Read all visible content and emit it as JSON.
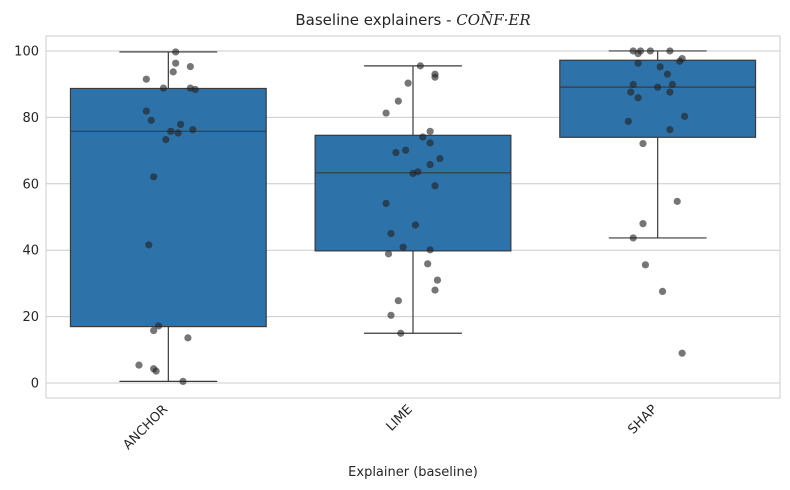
{
  "chart_data": {
    "type": "boxplot",
    "title_plain": "Baseline explainers - ",
    "title_math": "CON̄F·ER",
    "xlabel": "Explainer (baseline)",
    "ylabel": "",
    "ylim": [
      -4.5,
      104.5
    ],
    "yticks": [
      0,
      20,
      40,
      60,
      80,
      100
    ],
    "grid": "y",
    "categories": [
      "ANCHOR",
      "LIME",
      "SHAP"
    ],
    "box_color": "#2e72aa",
    "point_color": "#222222",
    "boxes": [
      {
        "name": "ANCHOR",
        "whisker_low": 0.5,
        "q1": 17.0,
        "median": 75.8,
        "q3": 88.7,
        "whisker_high": 99.7
      },
      {
        "name": "LIME",
        "whisker_low": 15.0,
        "q1": 39.8,
        "median": 63.3,
        "q3": 74.6,
        "whisker_high": 95.5
      },
      {
        "name": "SHAP",
        "whisker_low": 43.7,
        "q1": 74.0,
        "median": 89.1,
        "q3": 97.2,
        "whisker_high": 100.0
      }
    ],
    "points": [
      {
        "c": 0,
        "j": 0.03,
        "v": 99.7
      },
      {
        "c": 0,
        "j": 0.03,
        "v": 96.3
      },
      {
        "c": 0,
        "j": -0.09,
        "v": 91.5
      },
      {
        "c": 0,
        "j": 0.02,
        "v": 93.7
      },
      {
        "c": 0,
        "j": 0.09,
        "v": 95.3
      },
      {
        "c": 0,
        "j": -0.02,
        "v": 88.8
      },
      {
        "c": 0,
        "j": 0.09,
        "v": 88.8
      },
      {
        "c": 0,
        "j": 0.11,
        "v": 88.4
      },
      {
        "c": 0,
        "j": -0.09,
        "v": 81.9
      },
      {
        "c": 0,
        "j": -0.07,
        "v": 79.1
      },
      {
        "c": 0,
        "j": 0.05,
        "v": 77.9
      },
      {
        "c": 0,
        "j": 0.01,
        "v": 75.8
      },
      {
        "c": 0,
        "j": 0.04,
        "v": 75.3
      },
      {
        "c": 0,
        "j": 0.1,
        "v": 76.3
      },
      {
        "c": 0,
        "j": -0.01,
        "v": 73.3
      },
      {
        "c": 0,
        "j": -0.06,
        "v": 62.1
      },
      {
        "c": 0,
        "j": -0.08,
        "v": 41.6
      },
      {
        "c": 0,
        "j": -0.04,
        "v": 17.2
      },
      {
        "c": 0,
        "j": -0.06,
        "v": 15.8
      },
      {
        "c": 0,
        "j": 0.08,
        "v": 13.6
      },
      {
        "c": 0,
        "j": -0.12,
        "v": 5.4
      },
      {
        "c": 0,
        "j": -0.06,
        "v": 4.3
      },
      {
        "c": 0,
        "j": -0.05,
        "v": 3.6
      },
      {
        "c": 0,
        "j": 0.06,
        "v": 0.5
      },
      {
        "c": 1,
        "j": 0.03,
        "v": 95.5
      },
      {
        "c": 1,
        "j": 0.09,
        "v": 93.0
      },
      {
        "c": 1,
        "j": 0.09,
        "v": 92.1
      },
      {
        "c": 1,
        "j": -0.02,
        "v": 90.3
      },
      {
        "c": 1,
        "j": -0.06,
        "v": 84.9
      },
      {
        "c": 1,
        "j": -0.11,
        "v": 81.3
      },
      {
        "c": 1,
        "j": 0.07,
        "v": 75.8
      },
      {
        "c": 1,
        "j": 0.04,
        "v": 74.1
      },
      {
        "c": 1,
        "j": 0.07,
        "v": 72.3
      },
      {
        "c": 1,
        "j": -0.03,
        "v": 70.1
      },
      {
        "c": 1,
        "j": -0.07,
        "v": 69.4
      },
      {
        "c": 1,
        "j": 0.11,
        "v": 67.6
      },
      {
        "c": 1,
        "j": 0.07,
        "v": 65.8
      },
      {
        "c": 1,
        "j": 0.02,
        "v": 63.6
      },
      {
        "c": 1,
        "j": -0.0,
        "v": 63.1
      },
      {
        "c": 1,
        "j": 0.09,
        "v": 59.4
      },
      {
        "c": 1,
        "j": -0.11,
        "v": 54.1
      },
      {
        "c": 1,
        "j": 0.01,
        "v": 47.6
      },
      {
        "c": 1,
        "j": -0.09,
        "v": 45.0
      },
      {
        "c": 1,
        "j": -0.04,
        "v": 40.9
      },
      {
        "c": 1,
        "j": 0.07,
        "v": 40.1
      },
      {
        "c": 1,
        "j": -0.1,
        "v": 38.9
      },
      {
        "c": 1,
        "j": 0.06,
        "v": 35.9
      },
      {
        "c": 1,
        "j": 0.1,
        "v": 31.0
      },
      {
        "c": 1,
        "j": 0.09,
        "v": 28.0
      },
      {
        "c": 1,
        "j": -0.06,
        "v": 24.8
      },
      {
        "c": 1,
        "j": -0.09,
        "v": 20.4
      },
      {
        "c": 1,
        "j": -0.05,
        "v": 15.0
      },
      {
        "c": 2,
        "j": -0.1,
        "v": 100.0
      },
      {
        "c": 2,
        "j": -0.07,
        "v": 100.0
      },
      {
        "c": 2,
        "j": -0.03,
        "v": 100.0
      },
      {
        "c": 2,
        "j": 0.05,
        "v": 100.0
      },
      {
        "c": 2,
        "j": -0.08,
        "v": 99.2
      },
      {
        "c": 2,
        "j": 0.1,
        "v": 97.7
      },
      {
        "c": 2,
        "j": 0.09,
        "v": 96.9
      },
      {
        "c": 2,
        "j": -0.08,
        "v": 96.3
      },
      {
        "c": 2,
        "j": 0.01,
        "v": 95.2
      },
      {
        "c": 2,
        "j": 0.04,
        "v": 93.0
      },
      {
        "c": 2,
        "j": -0.1,
        "v": 89.9
      },
      {
        "c": 2,
        "j": 0.06,
        "v": 89.9
      },
      {
        "c": 2,
        "j": 0.0,
        "v": 89.1
      },
      {
        "c": 2,
        "j": -0.11,
        "v": 87.6
      },
      {
        "c": 2,
        "j": 0.05,
        "v": 87.6
      },
      {
        "c": 2,
        "j": -0.08,
        "v": 85.9
      },
      {
        "c": 2,
        "j": 0.11,
        "v": 80.3
      },
      {
        "c": 2,
        "j": -0.12,
        "v": 78.8
      },
      {
        "c": 2,
        "j": 0.05,
        "v": 76.3
      },
      {
        "c": 2,
        "j": -0.06,
        "v": 72.1
      },
      {
        "c": 2,
        "j": 0.08,
        "v": 54.7
      },
      {
        "c": 2,
        "j": -0.06,
        "v": 48.0
      },
      {
        "c": 2,
        "j": -0.1,
        "v": 43.7
      },
      {
        "c": 2,
        "j": -0.05,
        "v": 35.6
      },
      {
        "c": 2,
        "j": 0.02,
        "v": 27.6
      },
      {
        "c": 2,
        "j": 0.1,
        "v": 9.0
      }
    ]
  }
}
